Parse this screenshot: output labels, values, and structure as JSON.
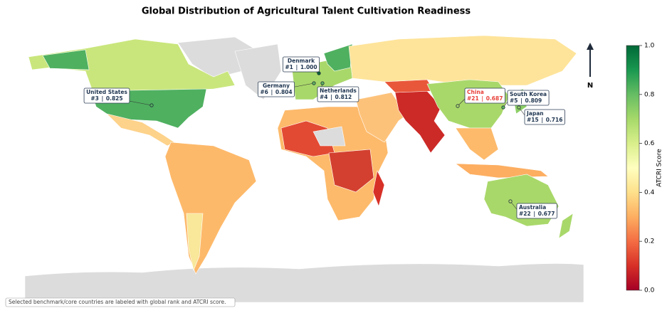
{
  "chart_data": {
    "type": "choropleth",
    "title": "Global Distribution of Agricultural Talent Cultivation Readiness",
    "countries": [
      "Denmark",
      "Germany",
      "Netherlands",
      "United States",
      "China",
      "South Korea",
      "Japan",
      "Australia"
    ],
    "ranks": [
      "#1",
      "#6",
      "#4",
      "#3",
      "#21",
      "#5",
      "#15",
      "#22"
    ],
    "values": [
      1.0,
      0.804,
      0.812,
      0.825,
      0.687,
      0.809,
      0.716,
      0.677
    ],
    "value_labels": [
      "1.000",
      "0.804",
      "0.812",
      "0.825",
      "0.687",
      "0.809",
      "0.716",
      "0.677"
    ],
    "label_colors": [
      "#1f3550",
      "#1f3550",
      "#1f3550",
      "#1f3550",
      "#e8403a",
      "#1f3550",
      "#1f3550",
      "#1f3550"
    ],
    "colorbar": {
      "label": "ATCRI Score",
      "lim": [
        0,
        1
      ],
      "ticks": [
        {
          "value": 0,
          "label": "0.0"
        },
        {
          "value": 0.2,
          "label": "0.2"
        },
        {
          "value": 0.4,
          "label": "0.4"
        },
        {
          "value": 0.6,
          "label": "0.6"
        },
        {
          "value": 0.8,
          "label": "0.8"
        },
        {
          "value": 1,
          "label": "1.0"
        }
      ],
      "colors": [
        "#a50026",
        "#d73027",
        "#f46d43",
        "#fdae61",
        "#fee08b",
        "#ffffbf",
        "#d9ef8b",
        "#a6d96a",
        "#66bd63",
        "#1a9850",
        "#006837"
      ]
    },
    "north": "N",
    "footnote": "Selected benchmark/core countries are labeled with global rank and ATCRI score."
  }
}
